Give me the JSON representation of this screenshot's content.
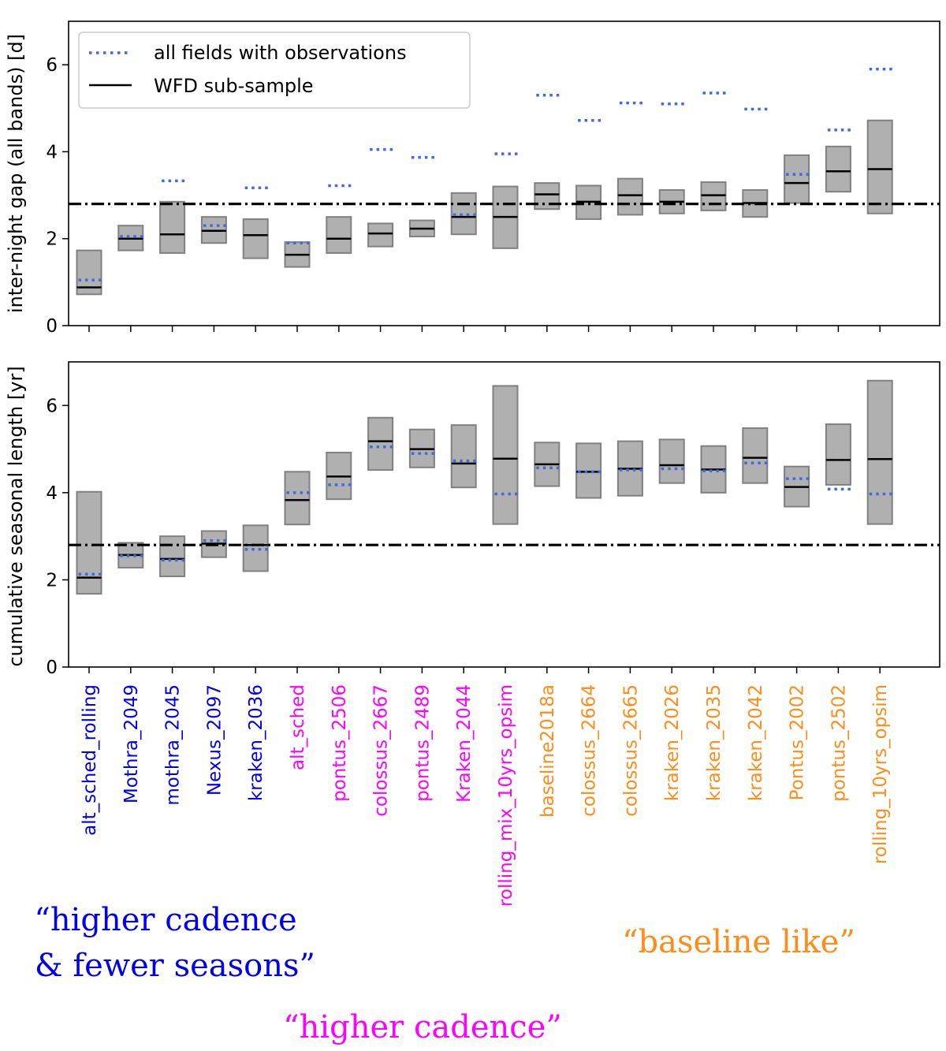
{
  "colors": {
    "all_fields": "#4169e1",
    "wfd": "#000000",
    "box_fill": "#b0b0b0",
    "box_edge": "#808080",
    "group_high_cad_fewer": "#0000ee",
    "group_high_cad": "#ff00ff",
    "group_baseline": "#ff8c1a"
  },
  "legend": {
    "all_fields_label": "all fields with observations",
    "wfd_label": "WFD sub-sample"
  },
  "group_labels": {
    "higher_cadence_fewer_line1": "“higher cadence",
    "higher_cadence_fewer_line2": "& fewer seasons”",
    "higher_cadence": "“higher cadence”",
    "baseline_like": "“baseline like”"
  },
  "chart_data": [
    {
      "type": "box",
      "panel": "top",
      "ylabel": "inter-night gap (all bands) [d]",
      "ylim": [
        0,
        7
      ],
      "yticks": [
        0,
        2,
        4,
        6
      ],
      "reference_line": 2.8,
      "categories": [
        "alt_sched_rolling",
        "Mothra_2049",
        "mothra_2045",
        "Nexus_2097",
        "kraken_2036",
        "alt_sched",
        "pontus_2506",
        "colossus_2667",
        "pontus_2489",
        "Kraken_2044",
        "rolling_mix_10yrs_opsim",
        "baseline2018a",
        "colossus_2664",
        "colossus_2665",
        "kraken_2026",
        "kraken_2035",
        "kraken_2042",
        "Pontus_2002",
        "pontus_2502",
        "rolling_10yrs_opsim"
      ],
      "category_groups": [
        "high_cad_fewer",
        "high_cad_fewer",
        "high_cad_fewer",
        "high_cad_fewer",
        "high_cad_fewer",
        "high_cad",
        "high_cad",
        "high_cad",
        "high_cad",
        "high_cad",
        "high_cad",
        "baseline",
        "baseline",
        "baseline",
        "baseline",
        "baseline",
        "baseline",
        "baseline",
        "baseline",
        "baseline"
      ],
      "box_low": [
        0.72,
        1.73,
        1.67,
        1.9,
        1.55,
        1.35,
        1.67,
        1.82,
        2.05,
        2.1,
        1.78,
        2.68,
        2.45,
        2.55,
        2.58,
        2.65,
        2.5,
        2.82,
        3.08,
        2.58
      ],
      "box_high": [
        1.73,
        2.3,
        2.85,
        2.5,
        2.45,
        1.92,
        2.5,
        2.35,
        2.42,
        3.05,
        3.2,
        3.28,
        3.22,
        3.38,
        3.12,
        3.3,
        3.12,
        3.92,
        4.12,
        4.72
      ],
      "wfd_median": [
        0.88,
        2.0,
        2.1,
        2.18,
        2.08,
        1.63,
        2.0,
        2.12,
        2.23,
        2.5,
        2.5,
        3.02,
        2.85,
        3.0,
        2.85,
        3.0,
        2.82,
        3.28,
        3.55,
        3.6
      ],
      "all_fields": [
        1.05,
        2.05,
        3.33,
        2.3,
        3.17,
        1.9,
        3.22,
        4.05,
        3.87,
        2.55,
        3.95,
        5.3,
        4.72,
        5.12,
        5.1,
        5.35,
        4.98,
        3.48,
        4.5,
        5.9
      ]
    },
    {
      "type": "box",
      "panel": "bottom",
      "ylabel": "cumulative seasonal length [yr]",
      "ylim": [
        0,
        7
      ],
      "yticks": [
        0,
        2,
        4,
        6
      ],
      "reference_line": 2.8,
      "categories": [
        "alt_sched_rolling",
        "Mothra_2049",
        "mothra_2045",
        "Nexus_2097",
        "kraken_2036",
        "alt_sched",
        "pontus_2506",
        "colossus_2667",
        "pontus_2489",
        "Kraken_2044",
        "rolling_mix_10yrs_opsim",
        "baseline2018a",
        "colossus_2664",
        "colossus_2665",
        "kraken_2026",
        "kraken_2035",
        "kraken_2042",
        "Pontus_2002",
        "pontus_2502",
        "rolling_10yrs_opsim"
      ],
      "box_low": [
        1.68,
        2.28,
        2.08,
        2.52,
        2.2,
        3.27,
        3.85,
        4.52,
        4.58,
        4.12,
        3.28,
        4.15,
        3.88,
        3.93,
        4.22,
        4.0,
        4.22,
        3.68,
        4.18,
        3.28
      ],
      "box_high": [
        4.02,
        2.85,
        3.0,
        3.12,
        3.25,
        4.48,
        4.92,
        5.72,
        5.45,
        5.55,
        6.45,
        5.15,
        5.13,
        5.18,
        5.22,
        5.07,
        5.48,
        4.6,
        5.57,
        6.57
      ],
      "wfd_median": [
        2.05,
        2.57,
        2.48,
        2.83,
        2.8,
        3.83,
        4.37,
        5.18,
        5.0,
        4.67,
        4.78,
        4.65,
        4.48,
        4.55,
        4.63,
        4.53,
        4.8,
        4.13,
        4.75,
        4.77
      ],
      "all_fields": [
        2.13,
        2.55,
        2.45,
        2.9,
        2.7,
        4.0,
        4.18,
        5.05,
        4.9,
        4.73,
        3.97,
        4.57,
        4.48,
        4.52,
        4.55,
        4.5,
        4.68,
        4.32,
        4.08,
        3.97
      ]
    }
  ]
}
